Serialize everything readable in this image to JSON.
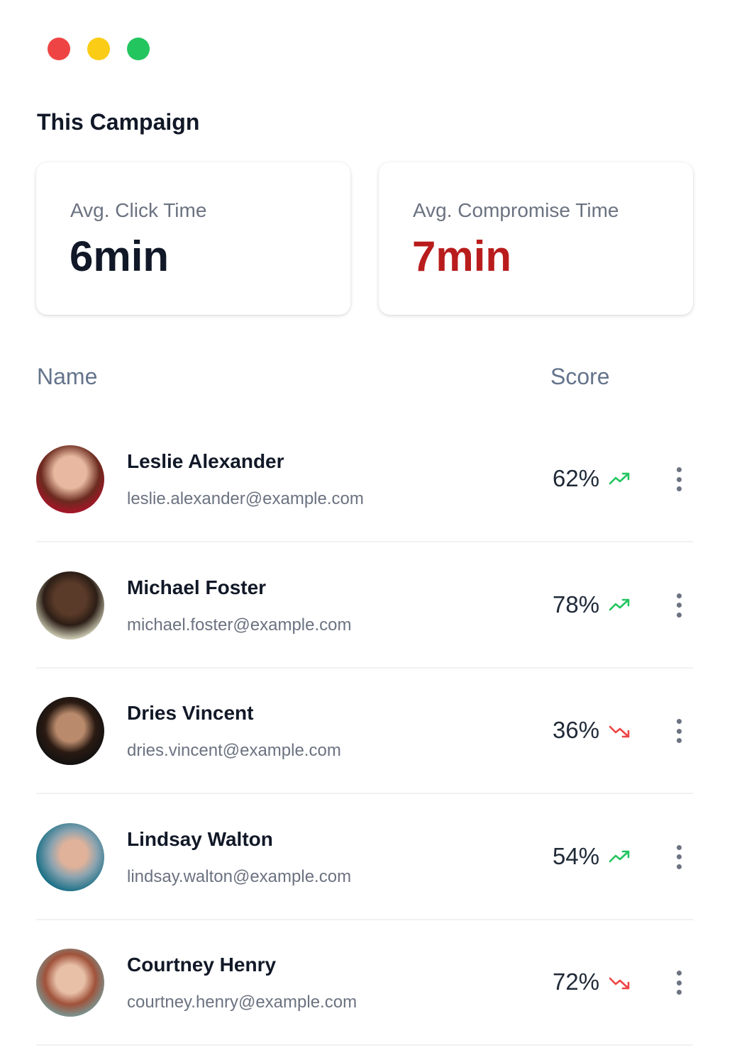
{
  "window": {
    "controls": [
      {
        "name": "close",
        "color": "#ef4444"
      },
      {
        "name": "minimize",
        "color": "#facc15"
      },
      {
        "name": "maximize",
        "color": "#22c55e"
      }
    ]
  },
  "title": "This Campaign",
  "stats": [
    {
      "label": "Avg. Click Time",
      "value": "6min",
      "color": "#111827"
    },
    {
      "label": "Avg. Compromise Time",
      "value": "7min",
      "color": "#b91c1c"
    }
  ],
  "table": {
    "headers": {
      "name": "Name",
      "score": "Score"
    },
    "rows": [
      {
        "name": "Leslie Alexander",
        "email": "leslie.alexander@example.com",
        "score": "62%",
        "trend": "up"
      },
      {
        "name": "Michael Foster",
        "email": "michael.foster@example.com",
        "score": "78%",
        "trend": "up"
      },
      {
        "name": "Dries Vincent",
        "email": "dries.vincent@example.com",
        "score": "36%",
        "trend": "down"
      },
      {
        "name": "Lindsay Walton",
        "email": "lindsay.walton@example.com",
        "score": "54%",
        "trend": "up"
      },
      {
        "name": "Courtney Henry",
        "email": "courtney.henry@example.com",
        "score": "72%",
        "trend": "down"
      }
    ]
  },
  "colors": {
    "up": "#22c55e",
    "down": "#ef4444"
  }
}
